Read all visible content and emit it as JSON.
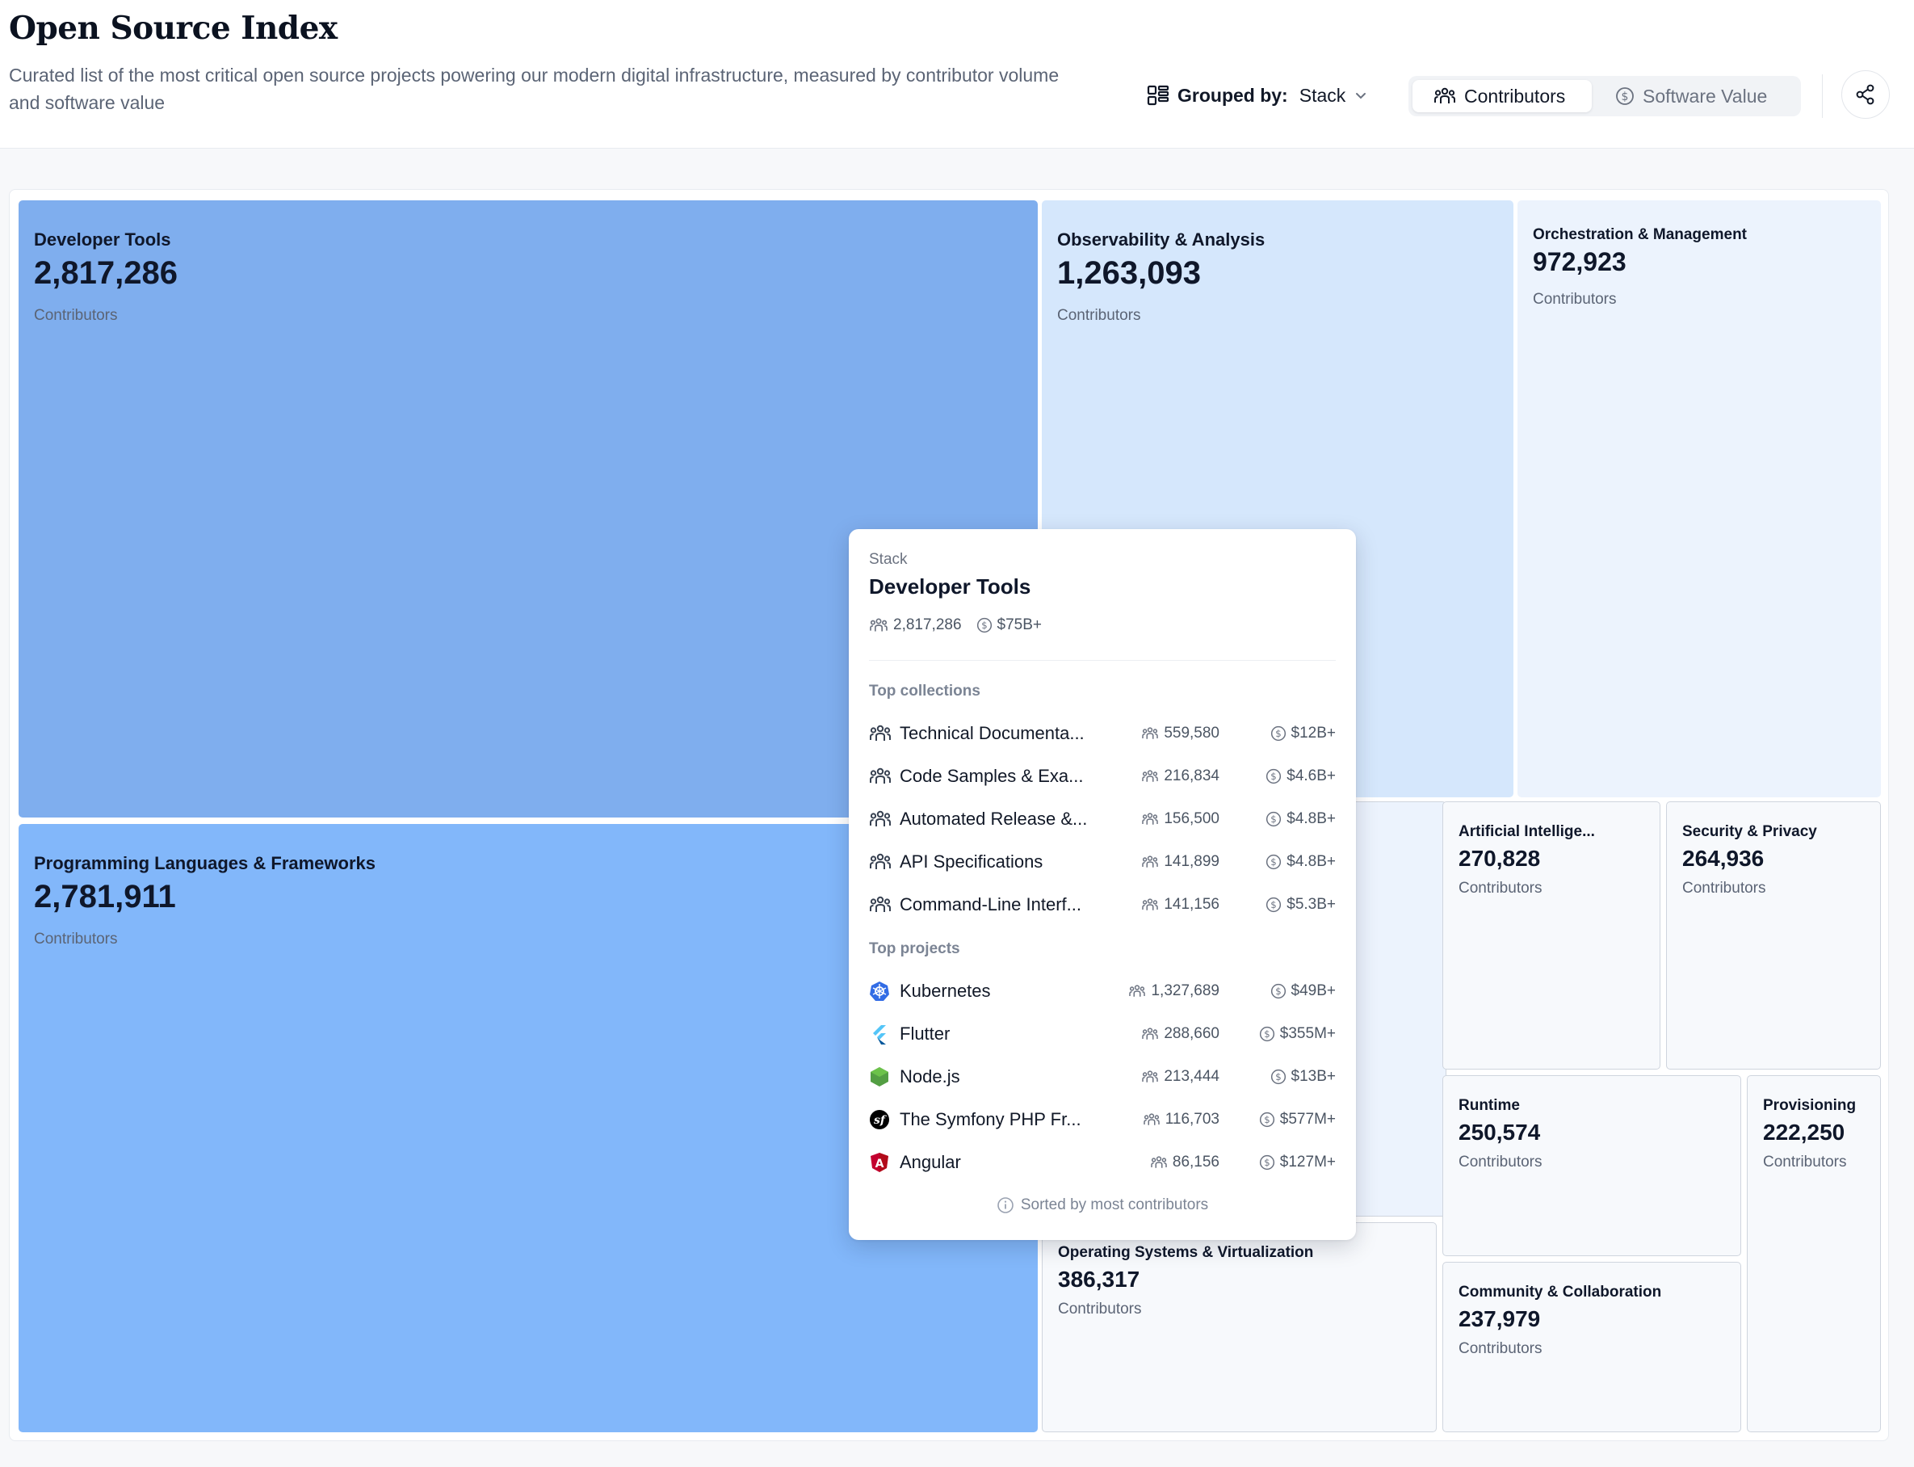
{
  "header": {
    "title": "Open Source Index",
    "subtitle": "Curated list of the most critical open source projects powering our modern digital infrastructure, measured by contributor volume and software value",
    "group_by_label": "Grouped by:",
    "group_by_value": "Stack",
    "toggle": {
      "contributors_label": "Contributors",
      "software_value_label": "Software Value",
      "active": "Contributors"
    }
  },
  "colors": {
    "tile_dark": "#7faeee",
    "tile_mid": "#82b7fa",
    "tile_light": "#d5e7fc",
    "tile_pale": "#ecf3fd",
    "tile_faint": "#f7f9fc"
  },
  "treemap": {
    "unit_label": "Contributors",
    "tiles": [
      {
        "name": "Developer Tools",
        "value": "2,817,286"
      },
      {
        "name": "Programming Languages & Frameworks",
        "value": "2,781,911"
      },
      {
        "name": "Observability & Analysis",
        "value": "1,263,093"
      },
      {
        "name": "Orchestration & Management",
        "value": "972,923"
      },
      {
        "name": "Artificial Intellige...",
        "value": "270,828"
      },
      {
        "name": "Security & Privacy",
        "value": "264,936"
      },
      {
        "name": "Runtime",
        "value": "250,574"
      },
      {
        "name": "Provisioning",
        "value": "222,250"
      },
      {
        "name": "Community & Collaboration",
        "value": "237,979"
      },
      {
        "name": "Operating Systems & Virtualization",
        "value": "386,317"
      },
      {
        "name": "",
        "value": ""
      }
    ]
  },
  "tooltip": {
    "kicker": "Stack",
    "title": "Developer Tools",
    "contributors": "2,817,286",
    "value": "$75B+",
    "collections_heading": "Top collections",
    "collections": [
      {
        "name": "Technical Documenta...",
        "contributors": "559,580",
        "value": "$12B+"
      },
      {
        "name": "Code Samples & Exa...",
        "contributors": "216,834",
        "value": "$4.6B+"
      },
      {
        "name": "Automated Release &...",
        "contributors": "156,500",
        "value": "$4.8B+"
      },
      {
        "name": "API Specifications",
        "contributors": "141,899",
        "value": "$4.8B+"
      },
      {
        "name": "Command-Line Interf...",
        "contributors": "141,156",
        "value": "$5.3B+"
      }
    ],
    "projects_heading": "Top projects",
    "projects": [
      {
        "name": "Kubernetes",
        "icon": "kubernetes-icon",
        "contributors": "1,327,689",
        "value": "$49B+"
      },
      {
        "name": "Flutter",
        "icon": "flutter-icon",
        "contributors": "288,660",
        "value": "$355M+"
      },
      {
        "name": "Node.js",
        "icon": "nodejs-icon",
        "contributors": "213,444",
        "value": "$13B+"
      },
      {
        "name": "The Symfony PHP Fr...",
        "icon": "symfony-icon",
        "contributors": "116,703",
        "value": "$577M+"
      },
      {
        "name": "Angular",
        "icon": "angular-icon",
        "contributors": "86,156",
        "value": "$127M+"
      }
    ],
    "footer": "Sorted by most contributors"
  }
}
